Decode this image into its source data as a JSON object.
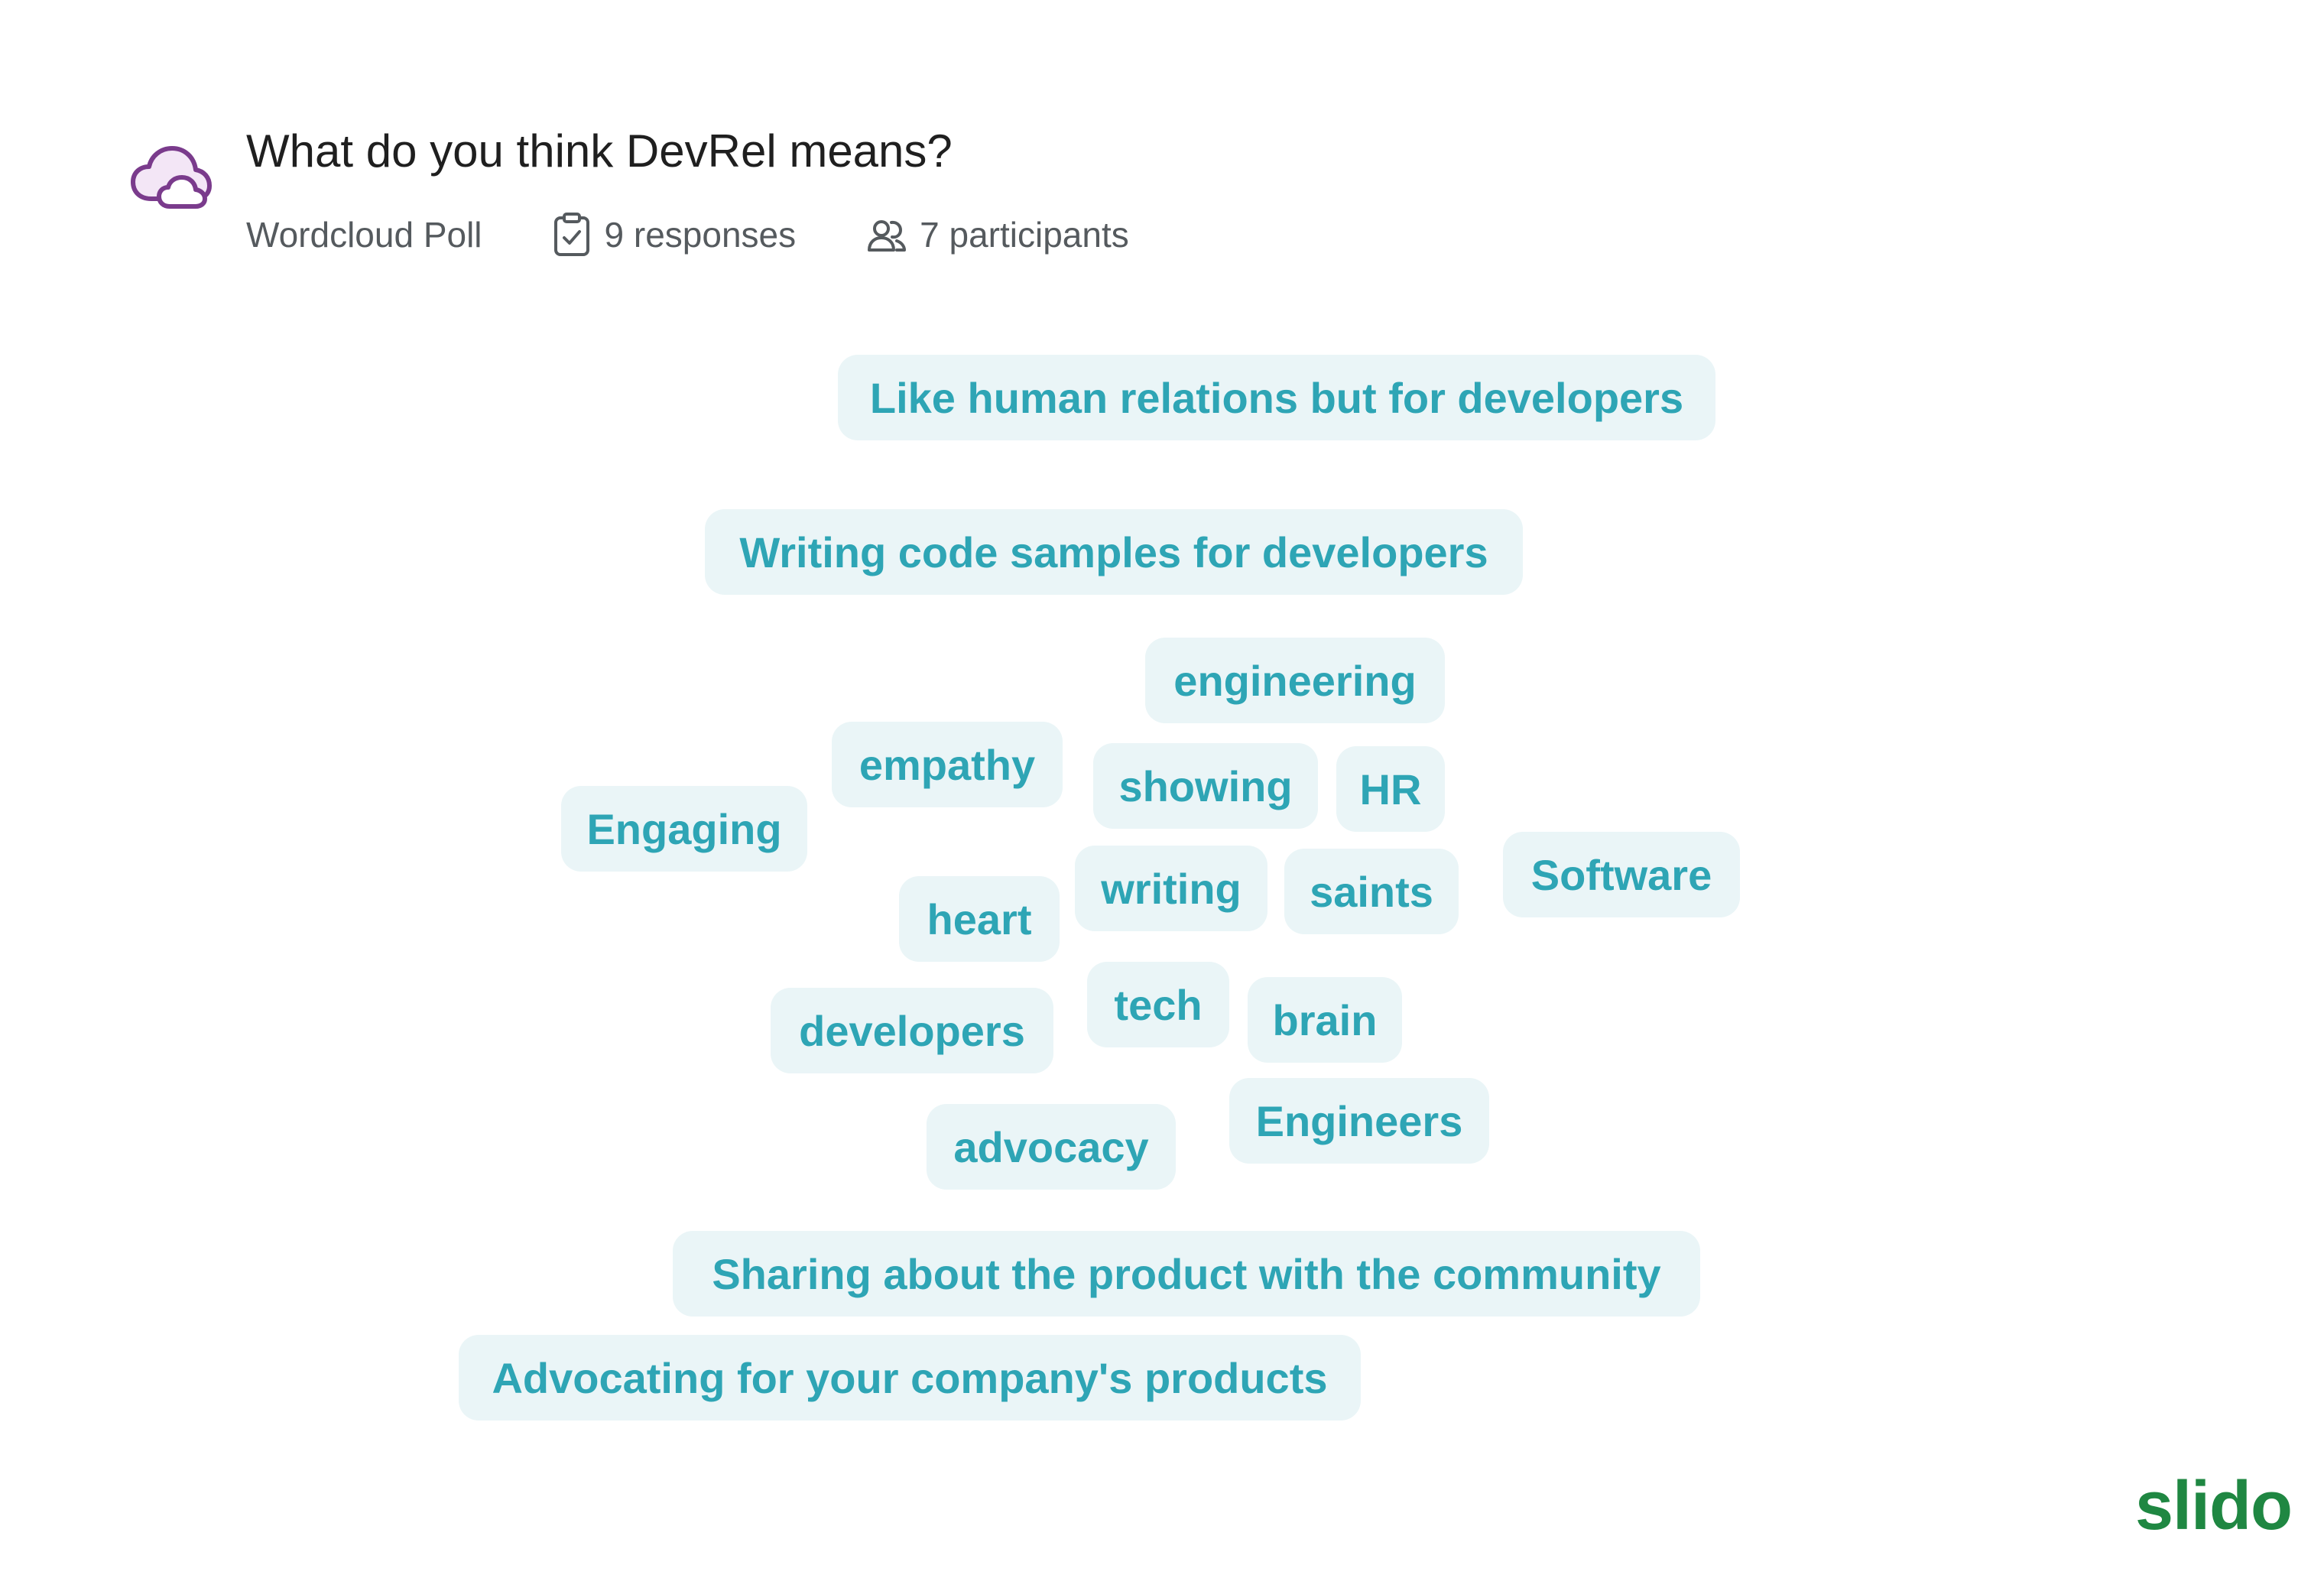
{
  "poll": {
    "icon": "wordcloud-cloud-icon",
    "title": "What do you think DevRel means?",
    "type": "Wordcloud Poll",
    "responses": "9 responses",
    "responses_icon": "clipboard-check-icon",
    "participants": "7 participants",
    "participants_icon": "people-icon"
  },
  "wordcloud": {
    "words": [
      "Like human relations but for developers",
      "Writing code samples for developers",
      "engineering",
      "empathy",
      "showing",
      "HR",
      "Engaging",
      "Software",
      "writing",
      "saints",
      "heart",
      "tech",
      "brain",
      "developers",
      "Engineers",
      "advocacy",
      "Sharing about the product with the community",
      "Advocating for your company's products"
    ]
  },
  "branding": {
    "logo_text": "slido"
  },
  "colors": {
    "word_text": "#2ea5b5",
    "word_background": "#eaf5f7",
    "icon_purple": "#7a3b8c",
    "brand_green": "#1f8742",
    "title_text": "#1f1f1f",
    "meta_text": "#555a5e"
  }
}
